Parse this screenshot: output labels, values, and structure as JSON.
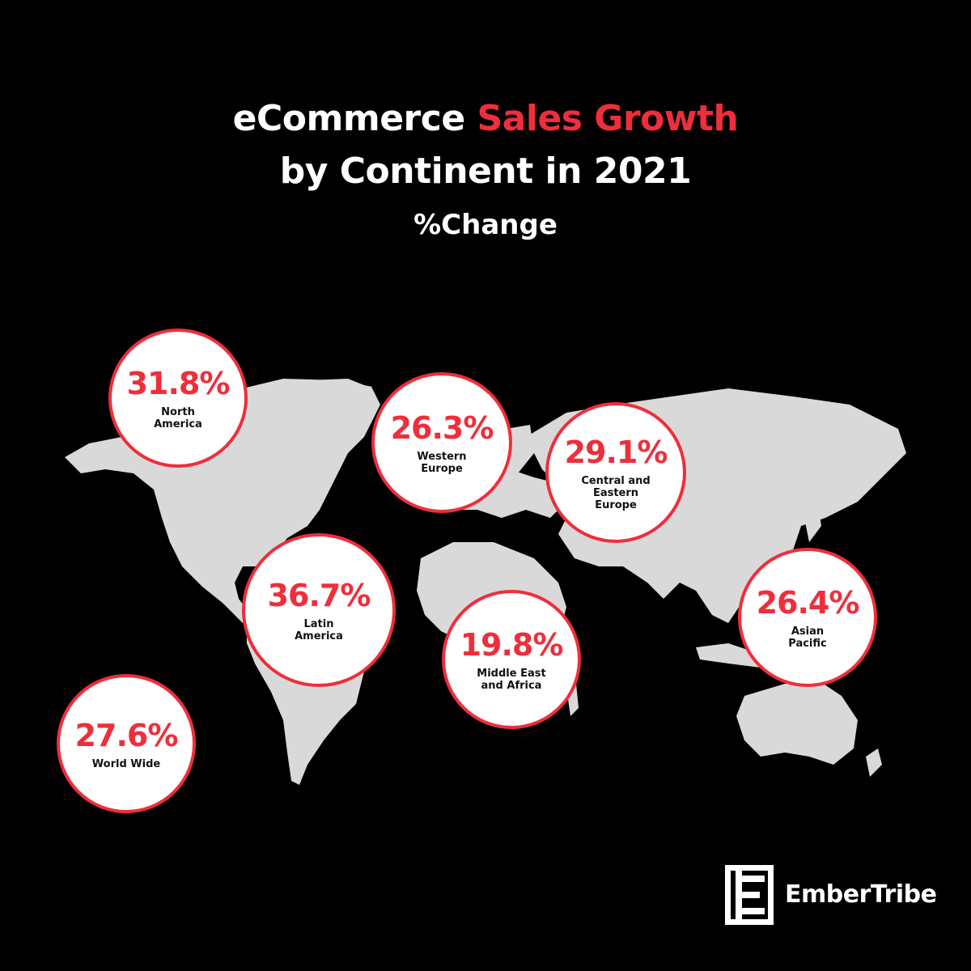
{
  "header": {
    "title_part1": "eCommerce ",
    "title_highlight": "Sales Growth",
    "title_line2": "by Continent in 2021",
    "subtitle": "%Change"
  },
  "brand": {
    "name": "EmberTribe",
    "logo_icon": "embertribe-logo-icon"
  },
  "colors": {
    "background": "#000000",
    "accent": "#ef2e3b",
    "land": "#d9d9d9",
    "bubble_fill": "#ffffff"
  },
  "chart_data": {
    "type": "map",
    "title": "eCommerce Sales Growth by Continent in 2021",
    "subtitle": "%Change",
    "unit": "%",
    "regions": [
      {
        "name": "North America",
        "label": "North\nAmerica",
        "value": 31.8,
        "display": "31.8%"
      },
      {
        "name": "Western Europe",
        "label": "Western\nEurope",
        "value": 26.3,
        "display": "26.3%"
      },
      {
        "name": "Central and Eastern Europe",
        "label": "Central and\nEastern\nEurope",
        "value": 29.1,
        "display": "29.1%"
      },
      {
        "name": "Latin America",
        "label": "Latin\nAmerica",
        "value": 36.7,
        "display": "36.7%"
      },
      {
        "name": "Middle East and Africa",
        "label": "Middle East\nand Africa",
        "value": 19.8,
        "display": "19.8%"
      },
      {
        "name": "Asian Pacific",
        "label": "Asian\nPacific",
        "value": 26.4,
        "display": "26.4%"
      },
      {
        "name": "World Wide",
        "label": "World Wide",
        "value": 27.6,
        "display": "27.6%"
      }
    ]
  }
}
